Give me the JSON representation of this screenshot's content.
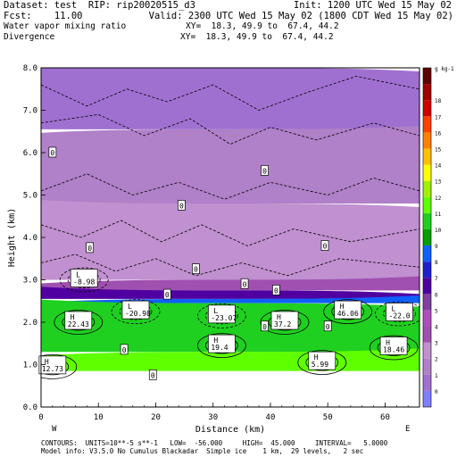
{
  "header": {
    "dataset": "Dataset: test  RIP: rip20020515_d3",
    "init": "Init: 1200 UTC Wed 15 May 02",
    "fcst": "Fcst:    11.00",
    "valid": "Valid: 2300 UTC Wed 15 May 02 (1800 CDT Wed 15 May 02)",
    "field1": "Water vapor mixing ratio",
    "xy1": "XY=  18.3, 49.9 to  67.4, 44.2",
    "field2": "Divergence",
    "xy2": "XY=  18.3, 49.9 to  67.4, 44.2"
  },
  "footer": {
    "contours": "CONTOURS:  UNITS=10**-5 s**-1   LOW=  -56.000     HIGH=  45.000     INTERVAL=   5.0000",
    "model": "Model info: V3.5.0 No Cumulus Blackadar  Simple ice    1 km,  29 levels,   2 sec"
  },
  "chart_data": {
    "type": "heatmap",
    "xlabel": "Distance (km)",
    "ylabel": "Height (km)",
    "xlim": [
      0,
      66
    ],
    "ylim": [
      0,
      8
    ],
    "x_ticks": [
      "0",
      "10",
      "20",
      "30",
      "40",
      "50",
      "60"
    ],
    "y_ticks": [
      "0.0",
      "1.0",
      "2.0",
      "3.0",
      "4.0",
      "5.0",
      "6.0",
      "7.0",
      "8.0"
    ],
    "endpoint_left": "W",
    "endpoint_right": "E",
    "colorbar": {
      "units": "g kg-1",
      "levels": [
        "0",
        "1",
        "2",
        "3",
        "4",
        "5",
        "6",
        "7",
        "8",
        "9",
        "10",
        "11",
        "12",
        "13",
        "14",
        "15",
        "16",
        "17",
        "18"
      ],
      "colors": [
        "#8080ff",
        "#a070d0",
        "#b080c8",
        "#c090d0",
        "#a050b0",
        "#b050c0",
        "#8040a0",
        "#5000a0",
        "#2020d0",
        "#1060ff",
        "#00a000",
        "#20d020",
        "#60ff00",
        "#a0f000",
        "#ffff00",
        "#ffc000",
        "#ff8000",
        "#ff4000",
        "#d00000",
        "#a00000",
        "#600000"
      ]
    },
    "moisture_layers": [
      {
        "bottom": 6.55,
        "top": 8.0,
        "value": 0
      },
      {
        "bottom": 4.8,
        "top": 6.55,
        "value": 1
      },
      {
        "bottom": 3.0,
        "top": 4.8,
        "value": 2
      },
      {
        "bottom": 2.75,
        "top": 3.0,
        "value": 3
      },
      {
        "bottom": 2.55,
        "top": 2.75,
        "value": 6
      },
      {
        "bottom": 2.45,
        "top": 2.55,
        "value": 8
      },
      {
        "bottom": 1.3,
        "top": 2.45,
        "value": 10
      },
      {
        "bottom": 0.85,
        "top": 1.3,
        "value": 11
      }
    ],
    "contour_labels": [
      {
        "text": "0",
        "x": 2.0,
        "y": 6.0
      },
      {
        "text": "0",
        "x": 39.0,
        "y": 5.57
      },
      {
        "text": "0",
        "x": 24.5,
        "y": 4.75
      },
      {
        "text": "0",
        "x": 8.5,
        "y": 3.75
      },
      {
        "text": "0",
        "x": 49.5,
        "y": 3.8
      },
      {
        "text": "0",
        "x": 27.0,
        "y": 3.25
      },
      {
        "text": "0",
        "x": 35.5,
        "y": 2.9
      },
      {
        "text": "0",
        "x": 22.0,
        "y": 2.65
      },
      {
        "text": "0",
        "x": 41.0,
        "y": 2.75
      },
      {
        "text": "0",
        "x": 39.0,
        "y": 1.9
      },
      {
        "text": "0",
        "x": 50.0,
        "y": 1.9
      },
      {
        "text": "0",
        "x": 14.5,
        "y": 1.35
      },
      {
        "text": "0",
        "x": 19.5,
        "y": 0.75
      }
    ],
    "extrema": [
      {
        "type": "L",
        "value": "-8.98",
        "x": 7.5,
        "y": 3.0
      },
      {
        "type": "L",
        "value": "-20.98",
        "x": 16.5,
        "y": 2.25
      },
      {
        "type": "L",
        "value": "-23.07",
        "x": 31.5,
        "y": 2.15
      },
      {
        "type": "L",
        "value": "-22.0",
        "x": 62.5,
        "y": 2.2
      },
      {
        "type": "H",
        "value": "22.43",
        "x": 6.5,
        "y": 2.0
      },
      {
        "type": "H",
        "value": "37.2",
        "x": 42.5,
        "y": 2.0
      },
      {
        "type": "H",
        "value": "46.06",
        "x": 53.5,
        "y": 2.25
      },
      {
        "type": "H",
        "value": "19.4",
        "x": 31.5,
        "y": 1.45
      },
      {
        "type": "H",
        "value": "5.99",
        "x": 49.0,
        "y": 1.05
      },
      {
        "type": "H",
        "value": "18.46",
        "x": 61.5,
        "y": 1.4
      },
      {
        "type": "H",
        "value": "12.73",
        "x": 2.0,
        "y": 0.95
      }
    ]
  }
}
